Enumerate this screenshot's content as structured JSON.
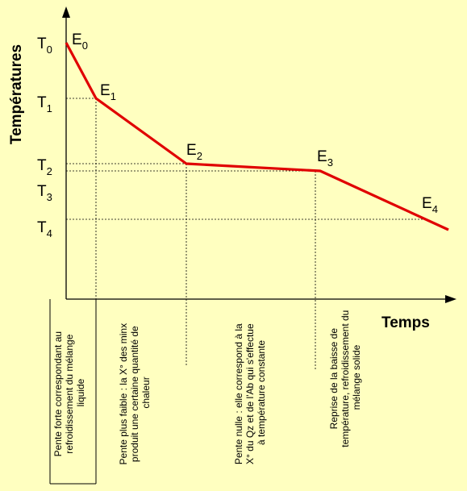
{
  "axes": {
    "y_title": "Températures",
    "x_title": "Temps"
  },
  "temperatures": [
    {
      "base": "T",
      "sub": "0"
    },
    {
      "base": "T",
      "sub": "1"
    },
    {
      "base": "T",
      "sub": "2"
    },
    {
      "base": "T",
      "sub": "3"
    },
    {
      "base": "T",
      "sub": "4"
    }
  ],
  "points": [
    {
      "base": "E",
      "sub": "0"
    },
    {
      "base": "E",
      "sub": "1"
    },
    {
      "base": "E",
      "sub": "2"
    },
    {
      "base": "E",
      "sub": "3"
    },
    {
      "base": "E",
      "sub": "4"
    }
  ],
  "annotations": [
    {
      "lines": [
        "Pente forte correspondant au",
        "refroidissement du mélange",
        "liquide"
      ]
    },
    {
      "lines": [
        "Pente plus faible : la X° des minx",
        "produit une certaine quantité de",
        "chaleur"
      ]
    },
    {
      "lines": [
        "Pente nulle : elle correspond à la",
        "X° du Qz et de l'Ab qui s'effectue",
        "à température constante"
      ]
    },
    {
      "lines": [
        "Reprise de la baisse de",
        "température, refroidissement du",
        "mélange solide"
      ]
    }
  ],
  "colors": {
    "background": "#ffffc0",
    "curve": "#e00000",
    "axis": "#000000"
  }
}
